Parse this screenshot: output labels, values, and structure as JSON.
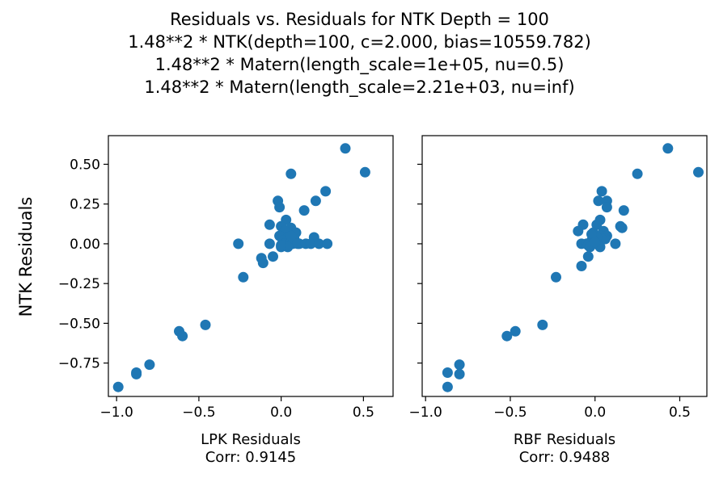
{
  "figure": {
    "title_lines": [
      "Residuals vs. Residuals for NTK Depth = 100",
      "1.48**2 * NTK(depth=100, c=2.000, bias=10559.782)",
      "1.48**2 * Matern(length_scale=1e+05, nu=0.5)",
      "1.48**2 * Matern(length_scale=2.21e+03, nu=inf)"
    ],
    "shared_ylabel": "NTK Residuals",
    "marker_color": "#1f77b4"
  },
  "chart_data": [
    {
      "type": "scatter",
      "xlabel": "LPK Residuals",
      "corr_label": "Corr: 0.9145",
      "xlim": [
        -1.05,
        0.68
      ],
      "ylim": [
        -0.96,
        0.68
      ],
      "xticks": [
        -1.0,
        -0.5,
        0.0,
        0.5
      ],
      "xtick_labels": [
        "−1.0",
        "−0.5",
        "0.0",
        "0.5"
      ],
      "yticks": [
        -0.75,
        -0.5,
        -0.25,
        0.0,
        0.25,
        0.5
      ],
      "ytick_labels": [
        "−0.75",
        "−0.50",
        "−0.25",
        "0.00",
        "0.25",
        "0.50"
      ],
      "grid": false,
      "x": [
        0.39,
        0.51,
        0.06,
        0.27,
        -0.02,
        -0.01,
        0.21,
        0.14,
        -0.07,
        0.03,
        0.0,
        0.06,
        0.09,
        0.02,
        -0.01,
        0.04,
        0.08,
        0.01,
        0.2,
        0.07,
        0.11,
        -0.26,
        -0.07,
        0.02,
        0.05,
        0.1,
        0.15,
        0.18,
        0.23,
        0.28,
        0.0,
        -0.05,
        -0.12,
        -0.11,
        -0.23,
        -0.62,
        -0.6,
        -0.46,
        -0.8,
        -0.88,
        -0.88,
        -0.99,
        0.04,
        0.0,
        0.06
      ],
      "y": [
        0.6,
        0.45,
        0.44,
        0.33,
        0.27,
        0.23,
        0.27,
        0.21,
        0.12,
        0.15,
        0.11,
        0.1,
        0.07,
        0.08,
        0.05,
        0.04,
        0.03,
        0.02,
        0.04,
        0.0,
        0.0,
        0.0,
        0.0,
        0.0,
        0.0,
        0.0,
        0.0,
        0.0,
        0.0,
        0.0,
        -0.02,
        -0.08,
        -0.09,
        -0.12,
        -0.21,
        -0.55,
        -0.58,
        -0.51,
        -0.76,
        -0.81,
        -0.82,
        -0.9,
        -0.02,
        -0.01,
        0.05
      ]
    },
    {
      "type": "scatter",
      "xlabel": "RBF Residuals",
      "corr_label": "Corr: 0.9488",
      "xlim": [
        -1.02,
        0.66
      ],
      "ylim": [
        -0.96,
        0.68
      ],
      "xticks": [
        -1.0,
        -0.5,
        0.0,
        0.5
      ],
      "xtick_labels": [
        "−1.0",
        "−0.5",
        "0.0",
        "0.5"
      ],
      "yticks": [
        -0.75,
        -0.5,
        -0.25,
        0.0,
        0.25,
        0.5
      ],
      "grid": false,
      "x": [
        0.43,
        0.61,
        0.25,
        0.04,
        0.02,
        0.07,
        0.07,
        0.17,
        -0.07,
        0.03,
        0.01,
        0.15,
        0.16,
        -0.1,
        -0.01,
        0.05,
        0.03,
        0.07,
        0.06,
        -0.02,
        0.0,
        -0.08,
        0.12,
        0.02,
        -0.05,
        0.04,
        -0.04,
        -0.03,
        -0.08,
        -0.04,
        -0.23,
        -0.52,
        -0.47,
        -0.31,
        -0.8,
        -0.8,
        -0.87,
        -0.87,
        0.03,
        0.01,
        -0.02,
        0.0
      ],
      "y": [
        0.6,
        0.45,
        0.44,
        0.33,
        0.27,
        0.27,
        0.23,
        0.21,
        0.12,
        0.15,
        0.12,
        0.11,
        0.1,
        0.08,
        0.07,
        0.08,
        0.05,
        0.05,
        0.03,
        0.02,
        0.0,
        0.0,
        0.0,
        0.0,
        0.0,
        0.03,
        -0.01,
        -0.02,
        -0.14,
        -0.08,
        -0.21,
        -0.58,
        -0.55,
        -0.51,
        -0.76,
        -0.82,
        -0.81,
        -0.9,
        -0.02,
        0.04,
        0.06,
        0.01
      ]
    }
  ]
}
